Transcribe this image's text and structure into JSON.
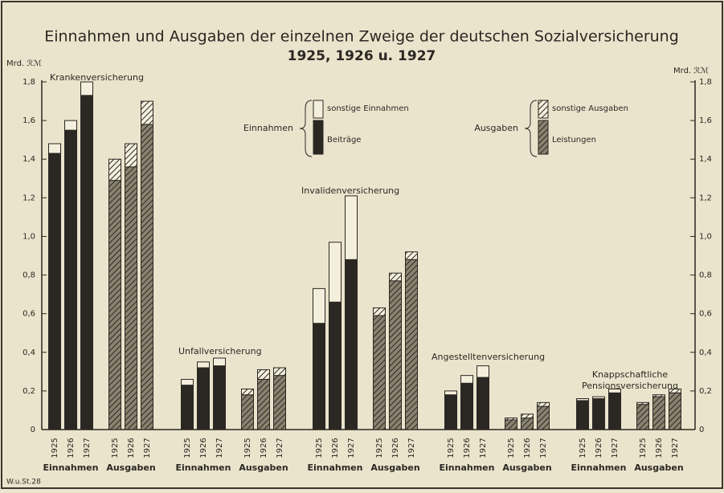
{
  "chart_data": {
    "type": "bar",
    "title": "Einnahmen und Ausgaben der einzelnen Zweige der deutschen Sozialversicherung",
    "subtitle": "1925, 1926 u. 1927",
    "y_label": "Mrd. ℛℳ",
    "footnote": "W.u.St.28",
    "ylim": [
      0,
      1.8
    ],
    "yticks": [
      0,
      {
        "value": 0.2,
        "label": "0,2"
      },
      {
        "value": 0.4,
        "label": "0,4"
      },
      {
        "value": 0.6,
        "label": "0,6"
      },
      {
        "value": 0.8,
        "label": "0,8"
      },
      {
        "value": 1.0,
        "label": "1,0"
      },
      {
        "value": 1.2,
        "label": "1,2"
      },
      {
        "value": 1.4,
        "label": "1,4"
      },
      {
        "value": 1.6,
        "label": "1,6"
      },
      {
        "value": 1.8,
        "label": "1,8"
      }
    ],
    "categories": [
      "1925",
      "1926",
      "1927"
    ],
    "stacks": [
      "Einnahmen",
      "Ausgaben"
    ],
    "series": [
      {
        "name": "Beiträge",
        "stack": 0,
        "color": "#2b2722",
        "hatch": false
      },
      {
        "name": "sonstige Einnahmen",
        "stack": 0,
        "color": "#f4eedc",
        "hatch": false
      },
      {
        "name": "Leistungen",
        "stack": 1,
        "color": "#2b2722",
        "hatch": true
      },
      {
        "name": "sonstige Ausgaben",
        "stack": 1,
        "color": "#f4eedc",
        "hatch": true
      }
    ],
    "groups": [
      {
        "label": [
          "Krankenversicherung"
        ],
        "values": [
          [
            1.43,
            1.55,
            1.73
          ],
          [
            0.05,
            0.05,
            0.07
          ],
          [
            1.29,
            1.36,
            1.58
          ],
          [
            0.11,
            0.12,
            0.12
          ]
        ]
      },
      {
        "label": [
          "Unfallversicherung"
        ],
        "values": [
          [
            0.23,
            0.32,
            0.33
          ],
          [
            0.03,
            0.03,
            0.04
          ],
          [
            0.18,
            0.26,
            0.28
          ],
          [
            0.03,
            0.05,
            0.04
          ]
        ]
      },
      {
        "label": [
          "Invalidenversicherung"
        ],
        "values": [
          [
            0.55,
            0.66,
            0.88
          ],
          [
            0.18,
            0.31,
            0.33
          ],
          [
            0.59,
            0.77,
            0.88
          ],
          [
            0.04,
            0.04,
            0.04
          ]
        ]
      },
      {
        "label": [
          "Angestelltenversicherung"
        ],
        "values": [
          [
            0.18,
            0.24,
            0.27
          ],
          [
            0.02,
            0.04,
            0.06
          ],
          [
            0.05,
            0.06,
            0.12
          ],
          [
            0.01,
            0.02,
            0.02
          ]
        ]
      },
      {
        "label": [
          "Knappschaftliche",
          "Pensionsversicherung"
        ],
        "values": [
          [
            0.15,
            0.16,
            0.19
          ],
          [
            0.01,
            0.01,
            0.02
          ],
          [
            0.13,
            0.17,
            0.19
          ],
          [
            0.01,
            0.01,
            0.02
          ]
        ]
      }
    ]
  }
}
